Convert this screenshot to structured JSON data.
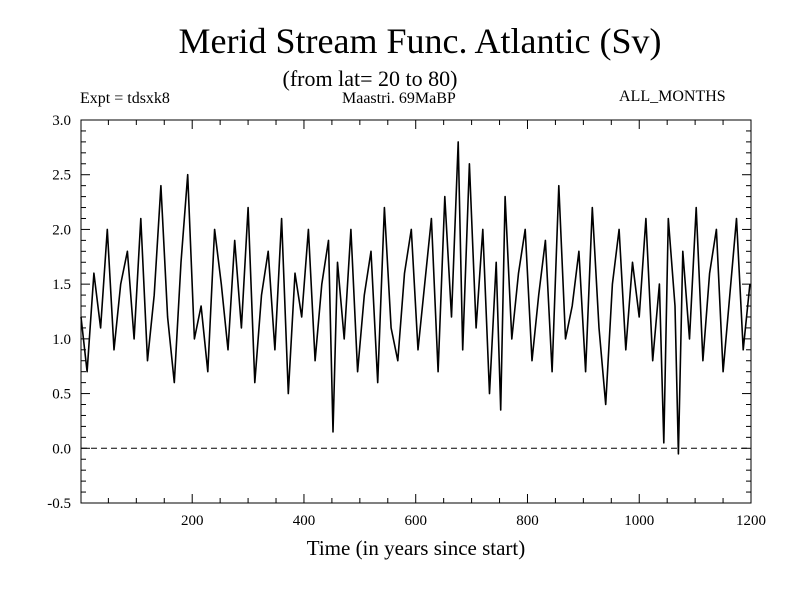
{
  "chart_data": {
    "type": "line",
    "title": "Merid Stream Func. Atlantic (Sv)",
    "subtitle": "(from lat= 20 to 80)",
    "experiment_label": "Expt = tdsxk8",
    "run_label": "Maastri.  69MaBP",
    "season_label": "ALL_MONTHS",
    "xlabel": "Time (in years since start)",
    "ylabel": "",
    "xlim": [
      1,
      1200
    ],
    "ylim": [
      -0.5,
      3.0
    ],
    "xticks": [
      200,
      400,
      600,
      800,
      1000,
      1200
    ],
    "xtick_labels": [
      "200",
      "400",
      "600",
      "800",
      "1000",
      "1200"
    ],
    "yticks": [
      -0.5,
      0.0,
      0.5,
      1.0,
      1.5,
      2.0,
      2.5,
      3.0
    ],
    "ytick_labels": [
      "-0.5",
      "0.0",
      "0.5",
      "1.0",
      "1.5",
      "2.0",
      "2.5",
      "3.0"
    ],
    "reference_line": {
      "y": 0.0,
      "style": "dashed"
    },
    "grid": false,
    "line_color": "#000000",
    "series": [
      {
        "x": [
          1,
          12,
          24,
          36,
          48,
          60,
          72,
          84,
          96,
          108,
          120,
          132,
          144,
          156,
          168,
          180,
          192,
          204,
          216,
          228,
          240,
          252,
          264,
          276,
          288,
          300,
          312,
          324,
          336,
          348,
          360,
          372,
          384,
          396,
          408,
          420,
          432,
          444,
          452,
          460,
          472,
          484,
          496,
          508,
          520,
          532,
          544,
          556,
          568,
          580,
          592,
          604,
          616,
          628,
          640,
          652,
          664,
          676,
          684,
          696,
          708,
          720,
          732,
          744,
          752,
          760,
          772,
          784,
          796,
          808,
          820,
          832,
          844,
          856,
          868,
          880,
          892,
          904,
          916,
          928,
          940,
          952,
          964,
          976,
          988,
          1000,
          1012,
          1024,
          1036,
          1044,
          1052,
          1064,
          1070,
          1078,
          1090,
          1102,
          1114,
          1126,
          1138,
          1150,
          1162,
          1174,
          1186,
          1198
        ],
        "values": [
          1.2,
          0.7,
          1.6,
          1.1,
          2.0,
          0.9,
          1.5,
          1.8,
          1.0,
          2.1,
          0.8,
          1.4,
          2.4,
          1.2,
          0.6,
          1.7,
          2.5,
          1.0,
          1.3,
          0.7,
          2.0,
          1.5,
          0.9,
          1.9,
          1.1,
          2.2,
          0.6,
          1.4,
          1.8,
          0.9,
          2.1,
          0.5,
          1.6,
          1.2,
          2.0,
          0.8,
          1.5,
          1.9,
          0.15,
          1.7,
          1.0,
          2.0,
          0.7,
          1.4,
          1.8,
          0.6,
          2.2,
          1.1,
          0.8,
          1.6,
          2.0,
          0.9,
          1.5,
          2.1,
          0.7,
          2.3,
          1.2,
          2.8,
          0.9,
          2.6,
          1.1,
          2.0,
          0.5,
          1.7,
          0.35,
          2.3,
          1.0,
          1.6,
          2.0,
          0.8,
          1.4,
          1.9,
          0.7,
          2.4,
          1.0,
          1.3,
          1.8,
          0.7,
          2.2,
          1.1,
          0.4,
          1.5,
          2.0,
          0.9,
          1.7,
          1.2,
          2.1,
          0.8,
          1.5,
          0.05,
          2.1,
          1.3,
          -0.05,
          1.8,
          1.0,
          2.2,
          0.8,
          1.6,
          2.0,
          0.7,
          1.4,
          2.1,
          0.9,
          1.5
        ]
      }
    ]
  }
}
